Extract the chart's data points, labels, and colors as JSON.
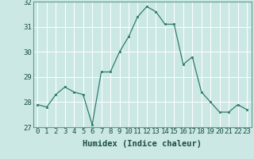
{
  "x": [
    0,
    1,
    2,
    3,
    4,
    5,
    6,
    7,
    8,
    9,
    10,
    11,
    12,
    13,
    14,
    15,
    16,
    17,
    18,
    19,
    20,
    21,
    22,
    23
  ],
  "y": [
    27.9,
    27.8,
    28.3,
    28.6,
    28.4,
    28.3,
    27.1,
    29.2,
    29.2,
    30.0,
    30.6,
    31.4,
    31.8,
    31.6,
    31.1,
    31.1,
    29.5,
    29.8,
    28.4,
    28.0,
    27.6,
    27.6,
    27.9,
    27.7
  ],
  "line_color": "#2d7c6e",
  "marker_color": "#2d7c6e",
  "bg_color": "#cce8e5",
  "grid_color": "#ffffff",
  "xlabel": "Humidex (Indice chaleur)",
  "ylim": [
    27,
    32
  ],
  "xlim": [
    -0.5,
    23.5
  ],
  "yticks": [
    27,
    28,
    29,
    30,
    31,
    32
  ],
  "xticks": [
    0,
    1,
    2,
    3,
    4,
    5,
    6,
    7,
    8,
    9,
    10,
    11,
    12,
    13,
    14,
    15,
    16,
    17,
    18,
    19,
    20,
    21,
    22,
    23
  ],
  "tick_fontsize": 6.5,
  "xlabel_fontsize": 7.5
}
